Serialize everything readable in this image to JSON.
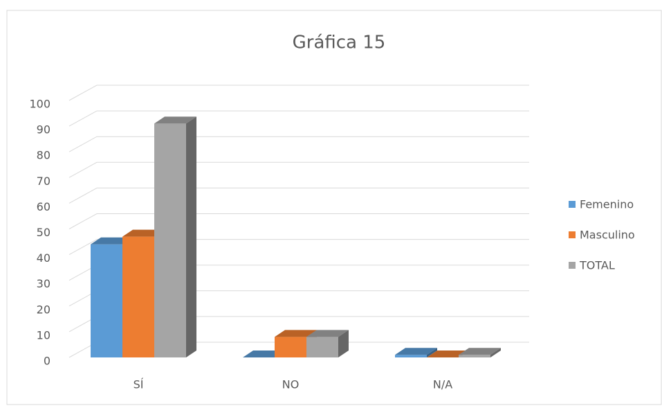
{
  "chart_data": {
    "type": "bar3d",
    "title": "Gráfica 15",
    "categories": [
      "SÍ",
      "NO",
      "N/A"
    ],
    "series": [
      {
        "name": "Femenino",
        "color": "#5b9bd5",
        "values": [
          44,
          0,
          1
        ]
      },
      {
        "name": "Masculino",
        "color": "#ed7d31",
        "values": [
          47,
          8,
          0
        ]
      },
      {
        "name": "TOTAL",
        "color": "#a5a5a5",
        "values": [
          91,
          8,
          1
        ]
      }
    ],
    "ylim": [
      0,
      100
    ],
    "yticks": [
      0,
      10,
      20,
      30,
      40,
      50,
      60,
      70,
      80,
      90,
      100
    ],
    "grid": true,
    "legend": "right"
  }
}
